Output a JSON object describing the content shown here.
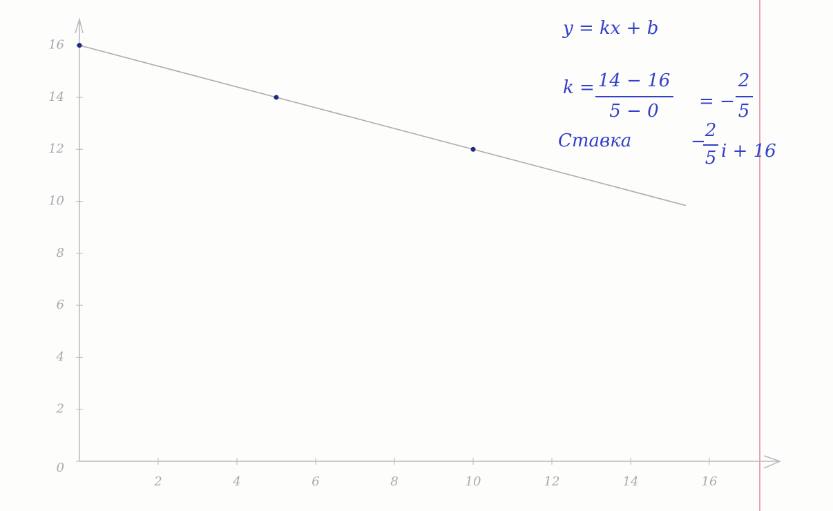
{
  "chart_data": {
    "type": "scatter",
    "xlim": [
      0,
      18
    ],
    "ylim": [
      0,
      17
    ],
    "xticks": [
      2,
      4,
      6,
      8,
      10,
      12,
      14,
      16
    ],
    "yticks": [
      0,
      2,
      4,
      6,
      8,
      10,
      12,
      14,
      16
    ],
    "grid": false,
    "series": [
      {
        "color": "#1f2a80",
        "x": [
          0,
          5,
          10
        ],
        "values": [
          16,
          14,
          12
        ]
      }
    ],
    "fit_line": {
      "color": "#b3a9b3",
      "x": [
        0,
        15.4
      ],
      "values": [
        16,
        9.84
      ]
    },
    "annotations": [
      "y = kx + b",
      "k =",
      "14 − 16",
      "5 − 0",
      "= −",
      "2",
      "5",
      "Ставка",
      "−",
      "2",
      "5",
      "i + 16"
    ]
  }
}
